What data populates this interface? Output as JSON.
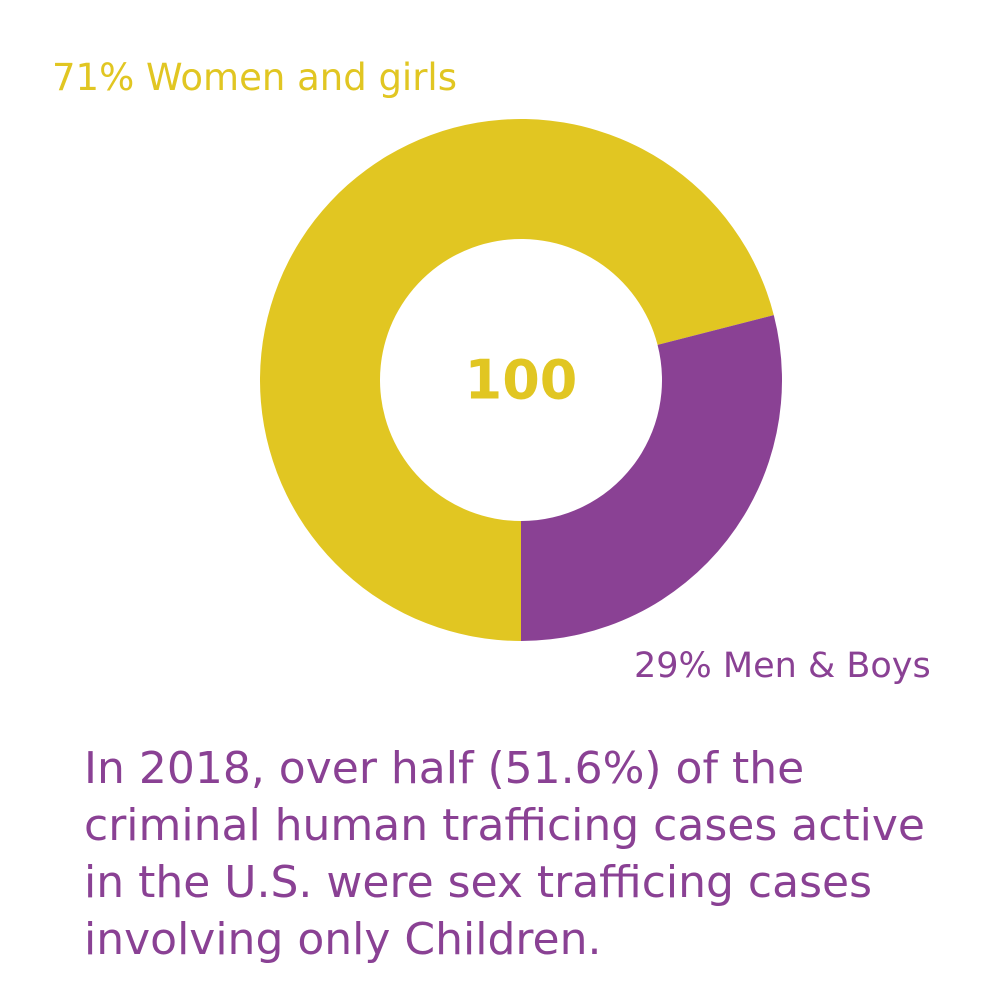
{
  "chart_data": {
    "type": "pie",
    "style": "donut",
    "categories": [
      "Women and girls",
      "Men & Boys"
    ],
    "values": [
      71,
      29
    ],
    "colors": [
      "#e1c622",
      "#8a4194"
    ],
    "center_text": "100",
    "center_color": "#e1c622"
  },
  "labels": {
    "women": "71% Women and girls",
    "men": "29% Men & Boys"
  },
  "caption": "In 2018, over half (51.6%) of the criminal human trafficing cases active in the U.S. were sex trafficing cases involving only Children."
}
